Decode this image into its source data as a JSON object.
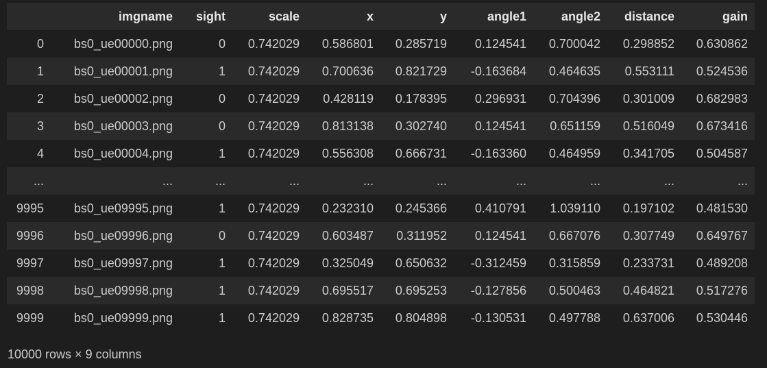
{
  "table": {
    "columns": [
      "",
      "imgname",
      "sight",
      "scale",
      "x",
      "y",
      "angle1",
      "angle2",
      "distance",
      "gain"
    ],
    "rows": [
      [
        "0",
        "bs0_ue00000.png",
        "0",
        "0.742029",
        "0.586801",
        "0.285719",
        "0.124541",
        "0.700042",
        "0.298852",
        "0.630862"
      ],
      [
        "1",
        "bs0_ue00001.png",
        "1",
        "0.742029",
        "0.700636",
        "0.821729",
        "-0.163684",
        "0.464635",
        "0.553111",
        "0.524536"
      ],
      [
        "2",
        "bs0_ue00002.png",
        "0",
        "0.742029",
        "0.428119",
        "0.178395",
        "0.296931",
        "0.704396",
        "0.301009",
        "0.682983"
      ],
      [
        "3",
        "bs0_ue00003.png",
        "0",
        "0.742029",
        "0.813138",
        "0.302740",
        "0.124541",
        "0.651159",
        "0.516049",
        "0.673416"
      ],
      [
        "4",
        "bs0_ue00004.png",
        "1",
        "0.742029",
        "0.556308",
        "0.666731",
        "-0.163360",
        "0.464959",
        "0.341705",
        "0.504587"
      ],
      [
        "...",
        "...",
        "...",
        "...",
        "...",
        "...",
        "...",
        "...",
        "...",
        "..."
      ],
      [
        "9995",
        "bs0_ue09995.png",
        "1",
        "0.742029",
        "0.232310",
        "0.245366",
        "0.410791",
        "1.039110",
        "0.197102",
        "0.481530"
      ],
      [
        "9996",
        "bs0_ue09996.png",
        "0",
        "0.742029",
        "0.603487",
        "0.311952",
        "0.124541",
        "0.667076",
        "0.307749",
        "0.649767"
      ],
      [
        "9997",
        "bs0_ue09997.png",
        "1",
        "0.742029",
        "0.325049",
        "0.650632",
        "-0.312459",
        "0.315859",
        "0.233731",
        "0.489208"
      ],
      [
        "9998",
        "bs0_ue09998.png",
        "1",
        "0.742029",
        "0.695517",
        "0.695253",
        "-0.127856",
        "0.500463",
        "0.464821",
        "0.517276"
      ],
      [
        "9999",
        "bs0_ue09999.png",
        "1",
        "0.742029",
        "0.828735",
        "0.804898",
        "-0.130531",
        "0.497788",
        "0.637006",
        "0.530446"
      ]
    ]
  },
  "footer": {
    "shape_text": "10000 rows × 9 columns"
  }
}
